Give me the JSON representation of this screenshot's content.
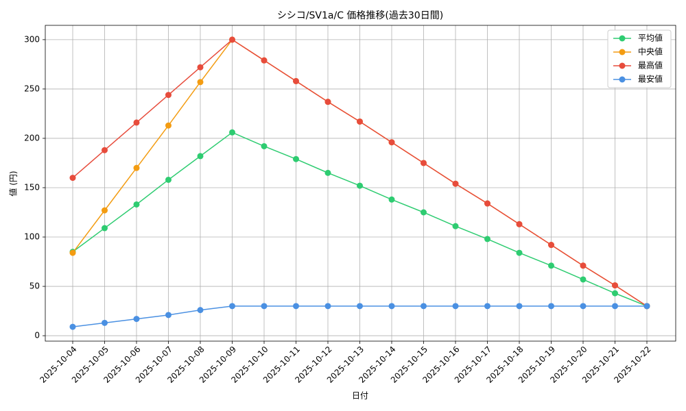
{
  "chart_data": {
    "type": "line",
    "title": "シシコ/SV1a/C 価格推移(過去30日間)",
    "x_label": "日付",
    "y_label": "値 (円)",
    "categories": [
      "2025-10-04",
      "2025-10-05",
      "2025-10-06",
      "2025-10-07",
      "2025-10-08",
      "2025-10-09",
      "2025-10-10",
      "2025-10-11",
      "2025-10-12",
      "2025-10-13",
      "2025-10-14",
      "2025-10-15",
      "2025-10-16",
      "2025-10-17",
      "2025-10-18",
      "2025-10-19",
      "2025-10-20",
      "2025-10-21",
      "2025-10-22"
    ],
    "series": [
      {
        "name": "平均値",
        "color": "#2ecc71",
        "values": [
          85,
          109,
          133,
          158,
          182,
          206,
          192,
          179,
          165,
          152,
          138,
          125,
          111,
          98,
          84,
          71,
          57,
          43,
          30
        ]
      },
      {
        "name": "中央値",
        "color": "#f39c12",
        "values": [
          84,
          127,
          170,
          213,
          257,
          300,
          279,
          258,
          237,
          217,
          196,
          175,
          154,
          134,
          113,
          92,
          71,
          51,
          30
        ]
      },
      {
        "name": "最高値",
        "color": "#e74c3c",
        "values": [
          160,
          188,
          216,
          244,
          272,
          300,
          279,
          258,
          237,
          217,
          196,
          175,
          154,
          134,
          113,
          92,
          71,
          51,
          30
        ]
      },
      {
        "name": "最安値",
        "color": "#4a90e2",
        "values": [
          9,
          13,
          17,
          21,
          26,
          30,
          30,
          30,
          30,
          30,
          30,
          30,
          30,
          30,
          30,
          30,
          30,
          30,
          30
        ]
      }
    ],
    "ylim": [
      -5.5,
      314.5
    ],
    "yticks": [
      0,
      50,
      100,
      150,
      200,
      250,
      300
    ],
    "grid": true,
    "legend": "upper right"
  }
}
